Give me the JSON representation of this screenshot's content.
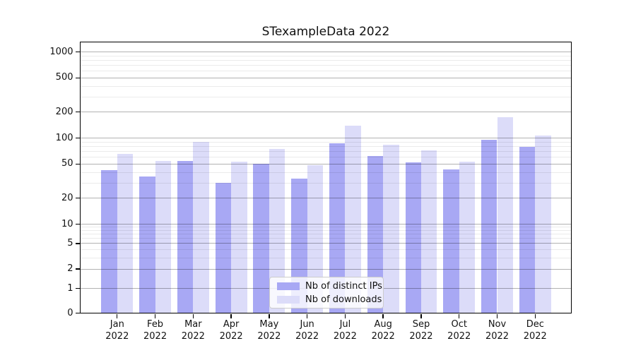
{
  "chart_data": {
    "type": "bar",
    "title": "STexampleData 2022",
    "x_axis": {
      "months": [
        "Jan",
        "Feb",
        "Mar",
        "Apr",
        "May",
        "Jun",
        "Jul",
        "Aug",
        "Sep",
        "Oct",
        "Nov",
        "Dec"
      ],
      "year": "2022"
    },
    "y_axis": {
      "scale": "symlog",
      "major_ticks": [
        0,
        1,
        2,
        5,
        10,
        20,
        50,
        100,
        200,
        500,
        1000
      ],
      "minor_ticks": [
        3,
        4,
        6,
        7,
        8,
        9,
        30,
        40,
        60,
        70,
        80,
        90,
        300,
        400,
        600,
        700,
        800,
        900
      ],
      "ylim": [
        0,
        1290
      ],
      "grid": true
    },
    "series": [
      {
        "name": "Nb of distinct IPs",
        "color": "#a8a8f4",
        "values": [
          42,
          36,
          54,
          30,
          50,
          34,
          87,
          62,
          52,
          43,
          95,
          79
        ]
      },
      {
        "name": "Nb of downloads",
        "color": "#dcdcf9",
        "values": [
          65,
          54,
          90,
          53,
          74,
          48,
          140,
          84,
          72,
          53,
          175,
          107
        ]
      }
    ],
    "legend_position": "lower center"
  },
  "colors": {
    "grid_major": "#b3b3b3",
    "grid_minor": "#ebebeb",
    "spine": "#000000",
    "text": "#111111",
    "legend_border": "#cccccc"
  }
}
